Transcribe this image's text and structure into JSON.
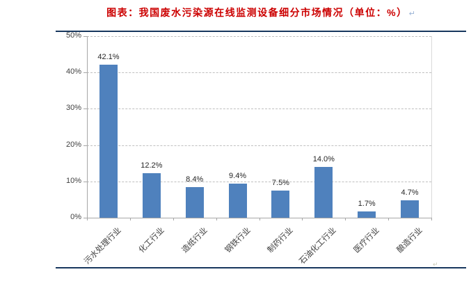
{
  "title": {
    "text": "图表：我国废水污染源在线监测设备细分市场情况（单位：%）",
    "paragraph_mark": "↵",
    "color": "#cc0000"
  },
  "trailing_mark": "↵",
  "table_border_color": "#17375e",
  "chart_data": {
    "type": "bar",
    "title": "图表：我国废水污染源在线监测设备细分市场情况（单位：%）",
    "categories": [
      "污水处理行业",
      "化工行业",
      "造纸行业",
      "钢铁行业",
      "制药行业",
      "石油化工行业",
      "医疗行业",
      "酿造行业"
    ],
    "values": [
      42.1,
      12.2,
      8.4,
      9.4,
      7.5,
      14.0,
      1.7,
      4.7
    ],
    "data_labels": [
      "42.1%",
      "12.2%",
      "8.4%",
      "9.4%",
      "7.5%",
      "14.0%",
      "1.7%",
      "4.7%"
    ],
    "y_ticks": [
      "0%",
      "10%",
      "20%",
      "30%",
      "40%",
      "50%"
    ],
    "y_tick_values": [
      0,
      10,
      20,
      30,
      40,
      50
    ],
    "ylim": [
      0,
      50
    ],
    "xlabel": "",
    "ylabel": "",
    "legend": "none",
    "grid": "horizontal-dashed",
    "bar_color": "#4f81bd",
    "gridline_color": "#bfbfbf",
    "axis_color": "#a6a6a6",
    "label_color": "#262626"
  }
}
